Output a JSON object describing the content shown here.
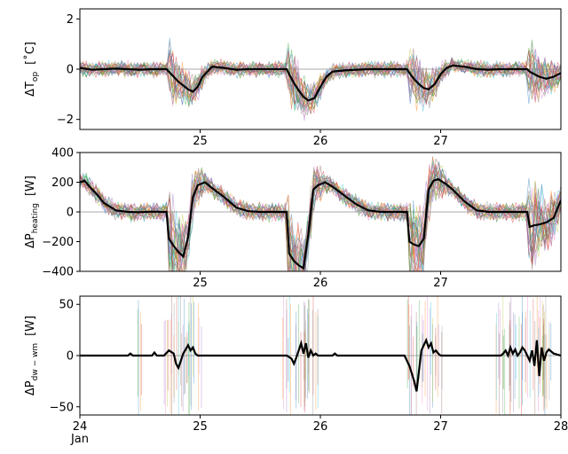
{
  "chart_data": [
    {
      "type": "line",
      "ylabel_main": "ΔT",
      "ylabel_sub": "op",
      "ylabel_unit": "[˚C]",
      "xlim": [
        24,
        28
      ],
      "ylim": [
        -2.4,
        2.4
      ],
      "yticks": [
        {
          "value": -2,
          "label": "−2"
        },
        {
          "value": 0,
          "label": "0"
        },
        {
          "value": 2,
          "label": "2"
        }
      ],
      "xticks": [
        {
          "value": 25,
          "label": "25"
        },
        {
          "value": 26,
          "label": "26"
        },
        {
          "value": 27,
          "label": "27"
        }
      ],
      "series": [
        {
          "x": [
            24.0,
            24.1,
            24.2,
            24.3,
            24.4,
            24.5,
            24.6,
            24.72,
            24.74,
            24.78,
            24.82,
            24.86,
            24.9,
            24.94,
            24.98,
            25.02,
            25.1,
            25.2,
            25.3,
            25.4,
            25.5,
            25.6,
            25.72,
            25.74,
            25.78,
            25.82,
            25.86,
            25.9,
            25.95,
            26.0,
            26.05,
            26.1,
            26.2,
            26.3,
            26.4,
            26.5,
            26.6,
            26.72,
            26.74,
            26.78,
            26.82,
            26.86,
            26.9,
            26.95,
            27.0,
            27.05,
            27.1,
            27.2,
            27.3,
            27.4,
            27.5,
            27.6,
            27.72,
            27.74,
            27.78,
            27.82,
            27.88,
            27.94,
            28.0
          ],
          "y": [
            0.05,
            -0.02,
            0.0,
            0.02,
            0.0,
            -0.02,
            0.0,
            0.0,
            -0.1,
            -0.3,
            -0.5,
            -0.65,
            -0.8,
            -0.9,
            -0.7,
            -0.3,
            0.1,
            0.05,
            -0.02,
            0.0,
            0.0,
            0.0,
            0.0,
            -0.2,
            -0.55,
            -0.85,
            -1.1,
            -1.25,
            -1.15,
            -0.7,
            -0.3,
            -0.1,
            -0.05,
            -0.02,
            0.0,
            0.0,
            0.0,
            0.0,
            -0.15,
            -0.4,
            -0.6,
            -0.75,
            -0.8,
            -0.6,
            -0.2,
            0.05,
            0.15,
            0.1,
            0.0,
            -0.02,
            0.0,
            0.0,
            0.0,
            -0.1,
            -0.2,
            -0.3,
            -0.38,
            -0.3,
            -0.15
          ]
        }
      ],
      "events": [
        24.72,
        25.72,
        26.72,
        27.72
      ],
      "band": {
        "base": 0.35,
        "dip": 1.1
      },
      "sample_count": 28,
      "sample_palette": [
        "#1f77b4",
        "#ff7f0e",
        "#2ca02c",
        "#d62728",
        "#9467bd",
        "#8c564b",
        "#e377c2",
        "#7f7f7f",
        "#bcbd22",
        "#17becf"
      ]
    },
    {
      "type": "line",
      "ylabel_main": "ΔP",
      "ylabel_sub": "heating",
      "ylabel_unit": "[W]",
      "xlim": [
        24,
        28
      ],
      "ylim": [
        -400,
        400
      ],
      "yticks": [
        {
          "value": -400,
          "label": "−400"
        },
        {
          "value": -200,
          "label": "−200"
        },
        {
          "value": 0,
          "label": "0"
        },
        {
          "value": 200,
          "label": "200"
        },
        {
          "value": 400,
          "label": "400"
        }
      ],
      "xticks": [
        {
          "value": 25,
          "label": "25"
        },
        {
          "value": 26,
          "label": "26"
        },
        {
          "value": 27,
          "label": "27"
        }
      ],
      "series": [
        {
          "x": [
            24.0,
            24.04,
            24.08,
            24.14,
            24.2,
            24.3,
            24.4,
            24.5,
            24.6,
            24.7,
            24.72,
            24.74,
            24.78,
            24.82,
            24.86,
            24.9,
            24.94,
            24.98,
            25.04,
            25.1,
            25.2,
            25.3,
            25.4,
            25.5,
            25.6,
            25.72,
            25.74,
            25.78,
            25.82,
            25.86,
            25.9,
            25.94,
            25.98,
            26.04,
            26.1,
            26.2,
            26.3,
            26.4,
            26.5,
            26.6,
            26.72,
            26.74,
            26.78,
            26.82,
            26.86,
            26.9,
            26.94,
            26.98,
            27.04,
            27.1,
            27.2,
            27.3,
            27.4,
            27.5,
            27.6,
            27.72,
            27.74,
            27.78,
            27.82,
            27.88,
            27.94,
            28.0
          ],
          "y": [
            200,
            210,
            170,
            120,
            60,
            10,
            0,
            -2,
            2,
            0,
            0,
            -180,
            -230,
            -270,
            -300,
            -170,
            100,
            180,
            200,
            160,
            100,
            30,
            5,
            0,
            0,
            0,
            -280,
            -330,
            -360,
            -380,
            -150,
            150,
            180,
            200,
            170,
            110,
            50,
            10,
            0,
            0,
            0,
            -200,
            -220,
            -230,
            -180,
            150,
            210,
            220,
            190,
            150,
            70,
            10,
            0,
            0,
            0,
            0,
            -100,
            -90,
            -85,
            -70,
            -40,
            80
          ]
        }
      ],
      "events": [
        24.72,
        25.72,
        26.72,
        27.72
      ],
      "band": {
        "base": 70,
        "dip": 330
      },
      "sample_count": 28,
      "sample_palette": [
        "#1f77b4",
        "#ff7f0e",
        "#2ca02c",
        "#d62728",
        "#9467bd",
        "#8c564b",
        "#e377c2",
        "#7f7f7f",
        "#bcbd22",
        "#17becf"
      ]
    },
    {
      "type": "line",
      "ylabel_main": "ΔP",
      "ylabel_sub": "dw − wm",
      "ylabel_unit": "[W]",
      "xlim": [
        24,
        28
      ],
      "ylim": [
        -58,
        58
      ],
      "yticks": [
        {
          "value": -50,
          "label": "−50"
        },
        {
          "value": 0,
          "label": "0"
        },
        {
          "value": 50,
          "label": "50"
        }
      ],
      "xticks": [
        {
          "value": 24,
          "label": "24"
        },
        {
          "value": 25,
          "label": "25"
        },
        {
          "value": 26,
          "label": "26"
        },
        {
          "value": 27,
          "label": "27"
        },
        {
          "value": 28,
          "label": "28"
        }
      ],
      "x_sublabel": "Jan",
      "series": [
        {
          "x": [
            24.0,
            24.4,
            24.42,
            24.44,
            24.6,
            24.62,
            24.64,
            24.7,
            24.74,
            24.78,
            24.8,
            24.82,
            24.84,
            24.86,
            24.88,
            24.9,
            24.92,
            24.94,
            24.96,
            24.98,
            25.0,
            25.1,
            25.4,
            25.6,
            25.7,
            25.72,
            25.76,
            25.78,
            25.8,
            25.82,
            25.84,
            25.86,
            25.88,
            25.9,
            25.92,
            25.94,
            25.96,
            25.98,
            26.1,
            26.12,
            26.14,
            26.4,
            26.6,
            26.7,
            26.74,
            26.78,
            26.8,
            26.82,
            26.84,
            26.86,
            26.88,
            26.9,
            26.92,
            26.94,
            26.96,
            26.98,
            27.0,
            27.1,
            27.4,
            27.5,
            27.52,
            27.54,
            27.56,
            27.58,
            27.6,
            27.62,
            27.64,
            27.66,
            27.68,
            27.7,
            27.72,
            27.74,
            27.76,
            27.78,
            27.8,
            27.82,
            27.84,
            27.86,
            27.88,
            27.9,
            27.94,
            28.0
          ],
          "y": [
            0,
            0,
            2,
            0,
            0,
            3,
            0,
            0,
            5,
            2,
            -8,
            -12,
            -5,
            2,
            6,
            10,
            5,
            8,
            2,
            0,
            0,
            0,
            0,
            0,
            0,
            0,
            -3,
            -8,
            -2,
            5,
            12,
            2,
            12,
            -2,
            5,
            0,
            2,
            0,
            0,
            2,
            0,
            0,
            0,
            0,
            -10,
            -25,
            -35,
            -15,
            5,
            10,
            15,
            8,
            12,
            3,
            5,
            2,
            0,
            0,
            0,
            0,
            2,
            5,
            0,
            8,
            2,
            6,
            0,
            3,
            8,
            5,
            0,
            -5,
            5,
            -10,
            15,
            -20,
            8,
            -5,
            3,
            6,
            2,
            0
          ],
          "name": ""
        }
      ],
      "spike_windows": [
        [
          24.48,
          24.52
        ],
        [
          24.7,
          25.02
        ],
        [
          25.68,
          25.98
        ],
        [
          26.72,
          27.02
        ],
        [
          27.44,
          27.92
        ]
      ],
      "sample_count": 28,
      "sample_palette": [
        "#1f77b4",
        "#ff7f0e",
        "#2ca02c",
        "#d62728",
        "#9467bd",
        "#8c564b",
        "#e377c2",
        "#7f7f7f",
        "#bcbd22",
        "#17becf"
      ]
    }
  ]
}
